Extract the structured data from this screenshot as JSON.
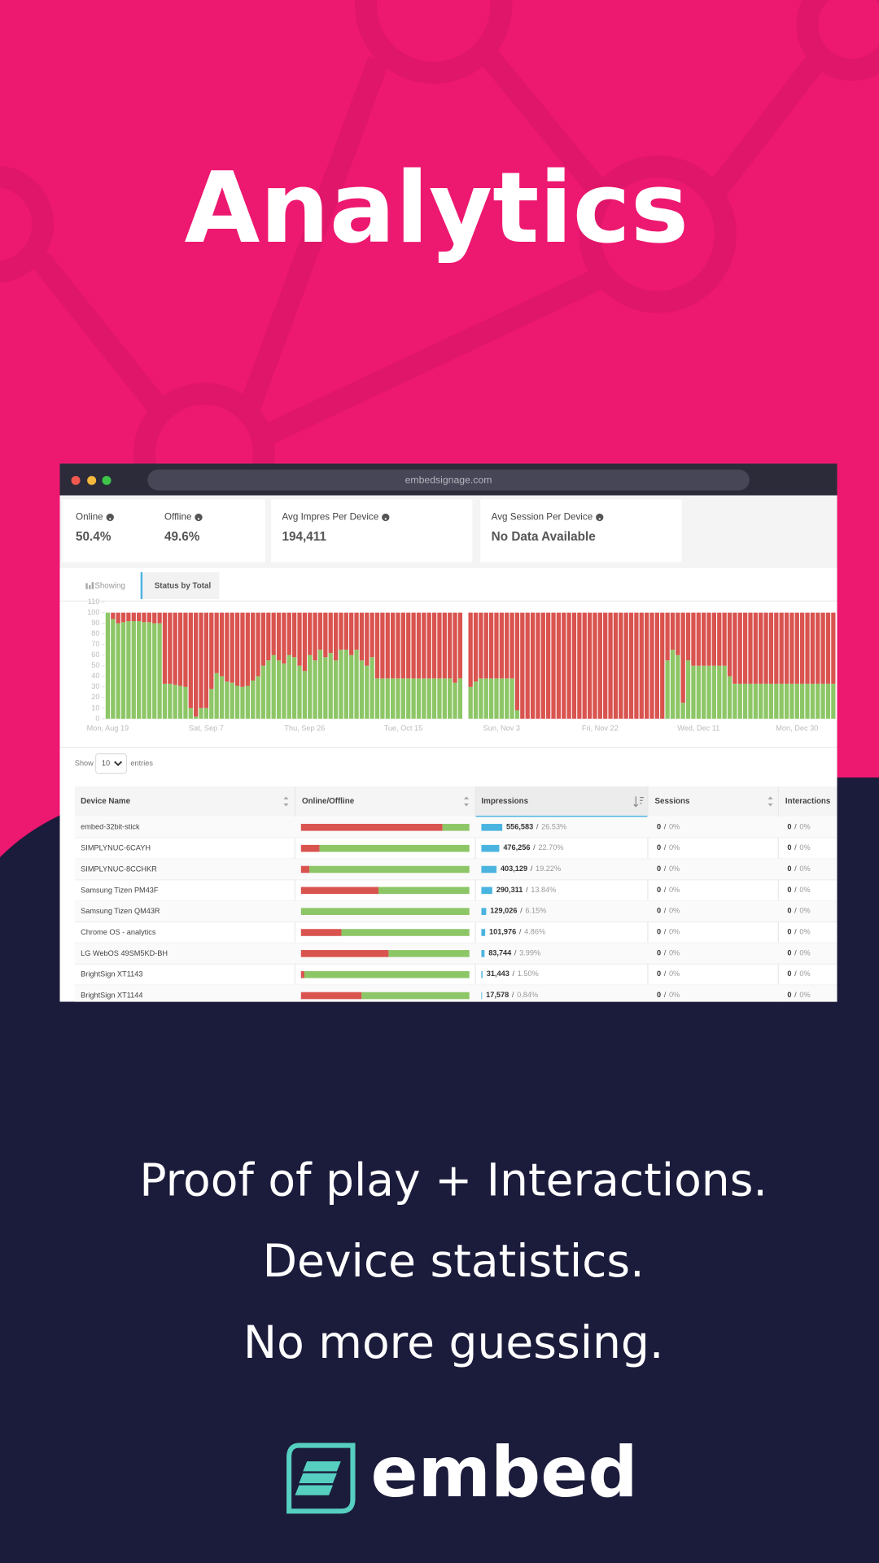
{
  "header": {
    "title": "Analytics"
  },
  "browser": {
    "url": "embedsignage.com"
  },
  "stats": [
    {
      "label": "Online",
      "value": "50.4%"
    },
    {
      "label": "Offline",
      "value": "49.6%"
    },
    {
      "label": "Avg Impres Per Device",
      "value": "194,411"
    },
    {
      "label": "Avg Session Per Device",
      "value": "No Data Available"
    }
  ],
  "tabs": {
    "showing": "Showing",
    "active": "Status by Total"
  },
  "chart_data": {
    "type": "stacked_bar",
    "categories": [
      "Mon, Aug 19",
      null,
      null,
      null,
      null,
      null,
      null,
      null,
      null,
      null,
      null,
      null,
      null,
      null,
      null,
      null,
      null,
      null,
      null,
      "Sat, Sep 7",
      null,
      null,
      null,
      null,
      null,
      null,
      null,
      null,
      null,
      null,
      null,
      null,
      null,
      null,
      null,
      null,
      null,
      null,
      "Thu, Sep 26",
      null,
      null,
      null,
      null,
      null,
      null,
      null,
      null,
      null,
      null,
      null,
      null,
      null,
      null,
      null,
      null,
      null,
      null,
      "Tue, Oct 15",
      null,
      null,
      null,
      null,
      null,
      null,
      null,
      null,
      null,
      null,
      null,
      null,
      null,
      null,
      null,
      null,
      null,
      null,
      "Sun, Nov 3",
      null,
      null,
      null,
      null,
      null,
      null,
      null,
      null,
      null,
      null,
      null,
      null,
      null,
      null,
      null,
      null,
      null,
      null,
      "Fri, Nov 22",
      null,
      null,
      null,
      null,
      null,
      null,
      null,
      null,
      null,
      null,
      null,
      null,
      null,
      null,
      null,
      null,
      null,
      null,
      "Wed, Dec 11",
      null,
      null,
      null,
      null,
      null,
      null,
      null,
      null,
      null,
      null,
      null,
      null,
      null,
      null,
      null,
      null,
      null,
      null,
      "Mon, Dec 30",
      null,
      null,
      null,
      null,
      null,
      null,
      null
    ],
    "series": [
      {
        "color": "#8dc666",
        "values": [
          100,
          94,
          90,
          91,
          92,
          92,
          92,
          91,
          91,
          90,
          90,
          33,
          33,
          32,
          31,
          30,
          10,
          2,
          10,
          10,
          28,
          43,
          40,
          35,
          34,
          31,
          30,
          31,
          36,
          40,
          50,
          55,
          60,
          55,
          52,
          60,
          58,
          50,
          45,
          60,
          55,
          65,
          58,
          62,
          55,
          65,
          65,
          60,
          65,
          55,
          50,
          58,
          38,
          38,
          38,
          38,
          38,
          38,
          38,
          38,
          38,
          38,
          38,
          38,
          38,
          38,
          38,
          34,
          38,
          null,
          30,
          35,
          38,
          38,
          38,
          38,
          38,
          38,
          38,
          8,
          0,
          0,
          0,
          0,
          0,
          0,
          0,
          0,
          0,
          0,
          0,
          0,
          0,
          0,
          0,
          0,
          0,
          0,
          0,
          0,
          0,
          0,
          0,
          0,
          0,
          0,
          0,
          0,
          55,
          65,
          60,
          15,
          55,
          50,
          50,
          50,
          50,
          50,
          50,
          50,
          40,
          33,
          33,
          33,
          33,
          33,
          33,
          33,
          33,
          33,
          33,
          33,
          33,
          33,
          33,
          33,
          33,
          33,
          33,
          33,
          33
        ]
      },
      {
        "color": "#d9534f",
        "values": [
          0,
          6,
          10,
          9,
          8,
          8,
          8,
          9,
          9,
          10,
          10,
          67,
          67,
          68,
          69,
          70,
          90,
          98,
          90,
          90,
          72,
          57,
          60,
          65,
          66,
          69,
          70,
          69,
          64,
          60,
          50,
          45,
          40,
          45,
          48,
          40,
          42,
          50,
          55,
          40,
          45,
          35,
          42,
          38,
          45,
          35,
          35,
          40,
          35,
          45,
          50,
          42,
          62,
          62,
          62,
          62,
          62,
          62,
          62,
          62,
          62,
          62,
          62,
          62,
          62,
          62,
          62,
          66,
          62,
          null,
          70,
          65,
          62,
          62,
          62,
          62,
          62,
          62,
          62,
          92,
          100,
          100,
          100,
          100,
          100,
          100,
          100,
          100,
          100,
          100,
          100,
          100,
          100,
          100,
          100,
          100,
          100,
          100,
          100,
          100,
          100,
          100,
          100,
          100,
          100,
          100,
          100,
          100,
          45,
          35,
          40,
          85,
          45,
          50,
          50,
          50,
          50,
          50,
          50,
          50,
          60,
          67,
          67,
          67,
          67,
          67,
          67,
          67,
          67,
          67,
          67,
          67,
          67,
          67,
          67,
          67,
          67,
          67,
          67,
          67,
          67
        ]
      }
    ],
    "ylim": [
      0,
      110
    ],
    "yticks": [
      0,
      10,
      20,
      30,
      40,
      50,
      60,
      70,
      80,
      90,
      100,
      110
    ]
  },
  "table": {
    "show": "Show",
    "length": "10",
    "entries": "entries",
    "separator": "/",
    "columns": [
      "Device Name",
      "Online/Offline",
      "Impressions",
      "Sessions",
      "Interactions"
    ],
    "rows": [
      {
        "device": "embed-32bit-stick",
        "offline": 84,
        "impressions": {
          "value": 556583,
          "label": "556,583"
        },
        "share": {
          "value": 26.53,
          "label": "26.53%"
        },
        "sessions": [
          0,
          "0%"
        ],
        "interactions": [
          0,
          "0%"
        ]
      },
      {
        "device": "SIMPLYNUC-6CAYH",
        "offline": 11,
        "impressions": {
          "value": 476256,
          "label": "476,256"
        },
        "share": {
          "value": 22.7,
          "label": "22.70%"
        },
        "sessions": [
          0,
          "0%"
        ],
        "interactions": [
          0,
          "0%"
        ]
      },
      {
        "device": "SIMPLYNUC-8CCHKR",
        "offline": 5,
        "impressions": {
          "value": 403129,
          "label": "403,129"
        },
        "share": {
          "value": 19.22,
          "label": "19.22%"
        },
        "sessions": [
          0,
          "0%"
        ],
        "interactions": [
          0,
          "0%"
        ]
      },
      {
        "device": "Samsung Tizen PM43F",
        "offline": 46,
        "impressions": {
          "value": 290311,
          "label": "290,311"
        },
        "share": {
          "value": 13.84,
          "label": "13.84%"
        },
        "sessions": [
          0,
          "0%"
        ],
        "interactions": [
          0,
          "0%"
        ]
      },
      {
        "device": "Samsung Tizen QM43R",
        "offline": 0,
        "impressions": {
          "value": 129026,
          "label": "129,026"
        },
        "share": {
          "value": 6.15,
          "label": "6.15%"
        },
        "sessions": [
          0,
          "0%"
        ],
        "interactions": [
          0,
          "0%"
        ]
      },
      {
        "device": "Chrome OS - analytics",
        "offline": 24,
        "impressions": {
          "value": 101976,
          "label": "101,976"
        },
        "share": {
          "value": 4.86,
          "label": "4.86%"
        },
        "sessions": [
          0,
          "0%"
        ],
        "interactions": [
          0,
          "0%"
        ]
      },
      {
        "device": "LG WebOS 49SM5KD-BH",
        "offline": 52,
        "impressions": {
          "value": 83744,
          "label": "83,744"
        },
        "share": {
          "value": 3.99,
          "label": "3.99%"
        },
        "sessions": [
          0,
          "0%"
        ],
        "interactions": [
          0,
          "0%"
        ]
      },
      {
        "device": "BrightSign XT1143",
        "offline": 2,
        "impressions": {
          "value": 31443,
          "label": "31,443"
        },
        "share": {
          "value": 1.5,
          "label": "1.50%"
        },
        "sessions": [
          0,
          "0%"
        ],
        "interactions": [
          0,
          "0%"
        ]
      },
      {
        "device": "BrightSign XT1144",
        "offline": 36,
        "impressions": {
          "value": 17578,
          "label": "17,578"
        },
        "share": {
          "value": 0.84,
          "label": "0.84%"
        },
        "sessions": [
          0,
          "0%"
        ],
        "interactions": [
          0,
          "0%"
        ]
      }
    ]
  },
  "taglines": [
    "Proof of play + Interactions.",
    "Device statistics.",
    "No more guessing."
  ],
  "logo": {
    "text": "embed"
  }
}
